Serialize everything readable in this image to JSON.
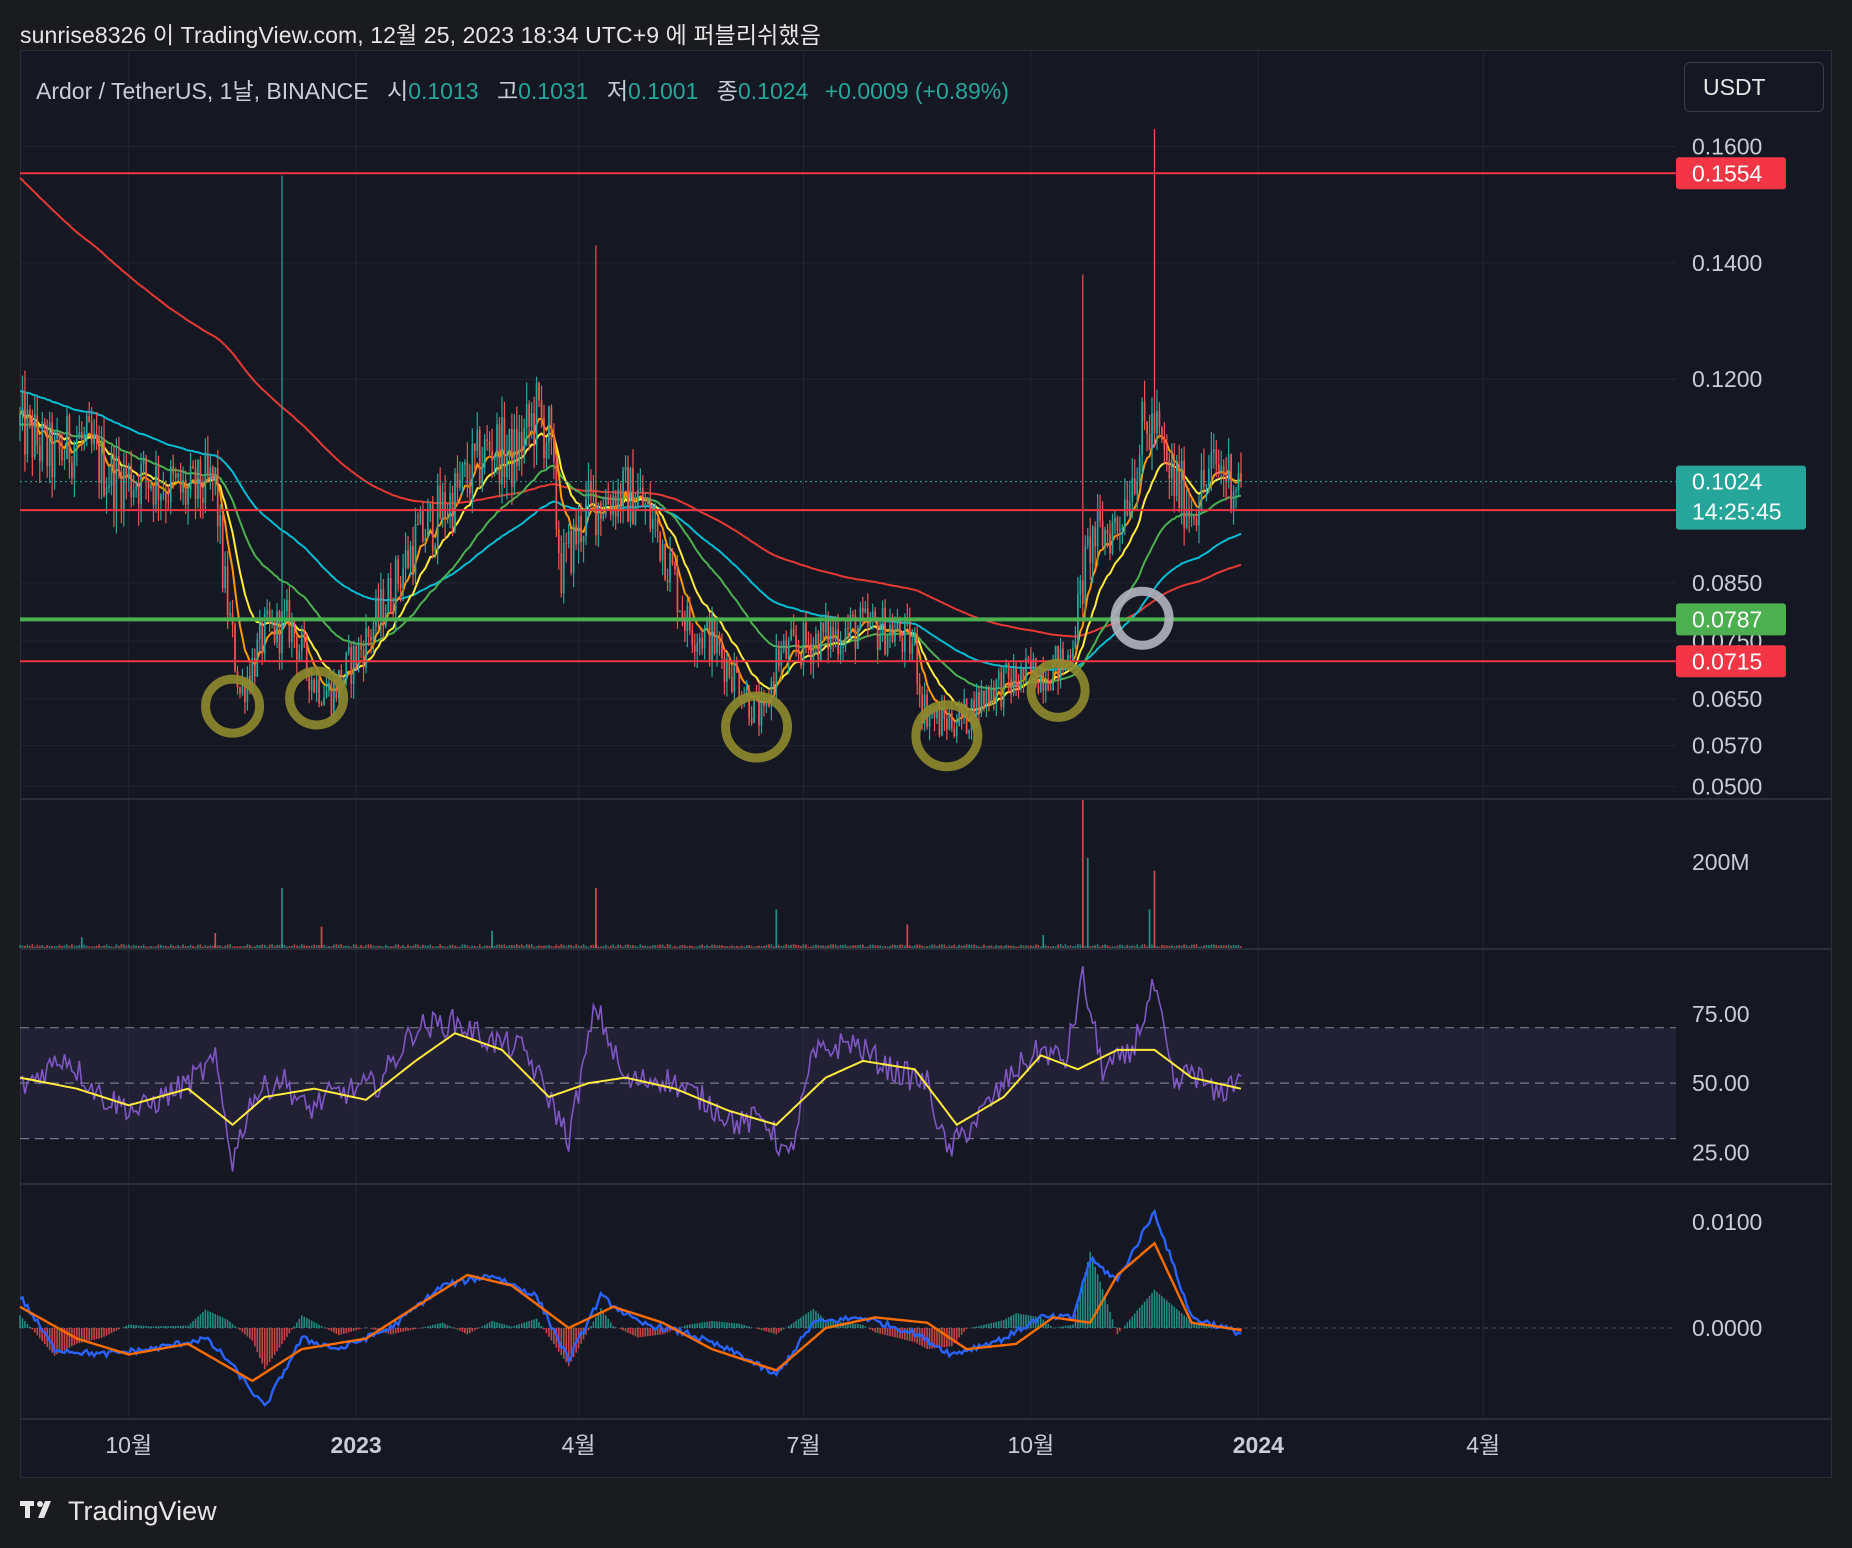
{
  "header": {
    "publish_line": "sunrise8326 이 TradingView.com, 12월 25, 2023 18:34 UTC+9 에 퍼블리쉬했음"
  },
  "legend": {
    "symbol": "Ardor / TetherUS, 1날, BINANCE",
    "open_label": "시",
    "open": "0.1013",
    "high_label": "고",
    "high": "0.1031",
    "low_label": "저",
    "low": "0.1001",
    "close_label": "종",
    "close": "0.1024",
    "change": "+0.0009 (+0.89%)"
  },
  "currency_button": "USDT",
  "footer": {
    "logo_icon": "tradingview-logo-icon",
    "brand": "TradingView"
  },
  "colors": {
    "up": "#26a69a",
    "down": "#ef5350",
    "resistance": "#f23645",
    "support": "#4caf50",
    "ema_fast": "#ff9800",
    "ema_yellow": "#ffeb3b",
    "ema_green": "#4caf50",
    "ema_cyan": "#00bcd4",
    "ema_red": "#e53935",
    "rsi": "#7e57c2",
    "rsi_ma": "#ffeb3b",
    "macd": "#2962ff",
    "signal": "#ff6d00",
    "circle_olive": "#8f8a2c",
    "circle_gray": "#b2b5be"
  },
  "chart_data": [
    {
      "type": "candlestick",
      "title": "Ardor / TetherUS, 1날, BINANCE",
      "ylim": [
        0.048,
        0.168
      ],
      "y_ticks": [
        "0.1600",
        "0.1400",
        "0.1200",
        "0.0850",
        "0.0750",
        "0.0650",
        "0.0570",
        "0.0500"
      ],
      "y_tick_values": [
        0.16,
        0.14,
        0.12,
        0.085,
        0.075,
        0.065,
        0.057,
        0.05
      ],
      "x_ticks": [
        "10월",
        "2023",
        "4월",
        "7월",
        "10월",
        "2024",
        "4월"
      ],
      "x_tick_dates": [
        "2022-10-01",
        "2023-01-01",
        "2023-04-01",
        "2023-07-01",
        "2023-10-01",
        "2024-01-01",
        "2024-04-01"
      ],
      "x_range_dates": [
        "2022-08-18",
        "2024-06-18"
      ],
      "last_date": "2023-12-25",
      "levels": [
        {
          "value": 0.1554,
          "label": "0.1554",
          "color": "#f23645"
        },
        {
          "value": 0.0975,
          "label": "0.0975",
          "color": "#f23645"
        },
        {
          "value": 0.0787,
          "label": "0.0787",
          "color": "#4caf50"
        },
        {
          "value": 0.0715,
          "label": "0.0715",
          "color": "#f23645"
        }
      ],
      "last_price": {
        "value": 0.1024,
        "label": "0.1024",
        "countdown": "14:25:45"
      },
      "price_path": {
        "dates": [
          "2022-08-18",
          "2022-09-01",
          "2022-09-10",
          "2022-09-25",
          "2022-10-10",
          "2022-10-25",
          "2022-11-05",
          "2022-11-08",
          "2022-11-15",
          "2022-11-25",
          "2022-12-05",
          "2022-12-15",
          "2022-12-22",
          "2023-01-05",
          "2023-01-25",
          "2023-02-10",
          "2023-02-25",
          "2023-03-05",
          "2023-03-15",
          "2023-03-20",
          "2023-03-25",
          "2023-04-05",
          "2023-04-15",
          "2023-04-25",
          "2023-05-05",
          "2023-05-15",
          "2023-05-25",
          "2023-06-05",
          "2023-06-10",
          "2023-06-15",
          "2023-06-20",
          "2023-07-05",
          "2023-07-20",
          "2023-08-05",
          "2023-08-15",
          "2023-08-18",
          "2023-08-25",
          "2023-09-05",
          "2023-09-15",
          "2023-09-25",
          "2023-10-05",
          "2023-10-15",
          "2023-10-20",
          "2023-10-25",
          "2023-11-05",
          "2023-11-15",
          "2023-11-20",
          "2023-11-25",
          "2023-12-05",
          "2023-12-15",
          "2023-12-25"
        ],
        "values": [
          0.112,
          0.106,
          0.11,
          0.103,
          0.103,
          0.1,
          0.102,
          0.087,
          0.066,
          0.076,
          0.078,
          0.068,
          0.066,
          0.075,
          0.092,
          0.1,
          0.109,
          0.106,
          0.114,
          0.11,
          0.087,
          0.098,
          0.1,
          0.1,
          0.092,
          0.078,
          0.075,
          0.068,
          0.064,
          0.061,
          0.072,
          0.075,
          0.077,
          0.077,
          0.074,
          0.064,
          0.061,
          0.062,
          0.067,
          0.068,
          0.07,
          0.071,
          0.08,
          0.092,
          0.095,
          0.11,
          0.112,
          0.104,
          0.098,
          0.105,
          0.1024
        ]
      },
      "spike_highs": [
        {
          "date": "2022-12-02",
          "value": 0.155
        },
        {
          "date": "2023-04-08",
          "value": 0.143
        },
        {
          "date": "2023-10-22",
          "value": 0.138
        },
        {
          "date": "2023-11-20",
          "value": 0.163
        }
      ],
      "highlight_circles": [
        {
          "date": "2022-11-12",
          "value": 0.0638,
          "color": "#8f8a2c"
        },
        {
          "date": "2022-12-16",
          "value": 0.0652,
          "color": "#8f8a2c"
        },
        {
          "date": "2023-06-12",
          "value": 0.0602,
          "color": "#8f8a2c"
        },
        {
          "date": "2023-08-28",
          "value": 0.0587,
          "color": "#8f8a2c"
        },
        {
          "date": "2023-10-12",
          "value": 0.0665,
          "color": "#8f8a2c"
        },
        {
          "date": "2023-11-15",
          "value": 0.0789,
          "color": "#b2b5be"
        }
      ]
    },
    {
      "type": "bar",
      "title": "Volume",
      "y_ticks": [
        "200M"
      ],
      "y_tick_values": [
        200
      ],
      "ylim": [
        0,
        345
      ],
      "spikes": [
        {
          "date": "2022-09-12",
          "value": 25
        },
        {
          "date": "2022-11-05",
          "value": 35
        },
        {
          "date": "2022-12-02",
          "value": 140
        },
        {
          "date": "2022-12-18",
          "value": 50
        },
        {
          "date": "2023-02-25",
          "value": 40
        },
        {
          "date": "2023-04-08",
          "value": 140
        },
        {
          "date": "2023-06-20",
          "value": 90
        },
        {
          "date": "2023-08-12",
          "value": 55
        },
        {
          "date": "2023-10-06",
          "value": 30
        },
        {
          "date": "2023-10-22",
          "value": 345
        },
        {
          "date": "2023-10-24",
          "value": 210
        },
        {
          "date": "2023-11-20",
          "value": 180
        },
        {
          "date": "2023-11-18",
          "value": 90
        }
      ]
    },
    {
      "type": "line",
      "title": "RSI",
      "ylim": [
        14,
        98
      ],
      "y_ticks": [
        "75.00",
        "50.00",
        "25.00"
      ],
      "y_tick_values": [
        75,
        50,
        25
      ],
      "bands": [
        70,
        50,
        30
      ],
      "series": [
        {
          "color": "#7e57c2",
          "dates": [
            "2022-08-18",
            "2022-09-05",
            "2022-09-20",
            "2022-10-05",
            "2022-10-25",
            "2022-11-05",
            "2022-11-12",
            "2022-11-20",
            "2022-12-02",
            "2022-12-12",
            "2022-12-20",
            "2023-01-10",
            "2023-01-25",
            "2023-02-10",
            "2023-02-25",
            "2023-03-10",
            "2023-03-20",
            "2023-03-28",
            "2023-04-08",
            "2023-04-20",
            "2023-05-05",
            "2023-05-20",
            "2023-06-05",
            "2023-06-15",
            "2023-06-25",
            "2023-07-05",
            "2023-07-20",
            "2023-08-05",
            "2023-08-20",
            "2023-08-28",
            "2023-09-10",
            "2023-09-25",
            "2023-10-05",
            "2023-10-15",
            "2023-10-22",
            "2023-10-30",
            "2023-11-10",
            "2023-11-20",
            "2023-11-28",
            "2023-12-05",
            "2023-12-15",
            "2023-12-25"
          ],
          "values": [
            48,
            60,
            45,
            40,
            50,
            58,
            22,
            45,
            52,
            40,
            45,
            50,
            70,
            72,
            65,
            62,
            45,
            30,
            78,
            50,
            52,
            45,
            35,
            38,
            22,
            60,
            65,
            55,
            50,
            25,
            38,
            55,
            62,
            58,
            88,
            55,
            60,
            85,
            48,
            55,
            45,
            53
          ]
        },
        {
          "color": "#ffeb3b",
          "dates": [
            "2022-08-18",
            "2022-09-10",
            "2022-10-01",
            "2022-10-25",
            "2022-11-12",
            "2022-11-25",
            "2022-12-15",
            "2023-01-05",
            "2023-01-25",
            "2023-02-10",
            "2023-03-01",
            "2023-03-20",
            "2023-04-05",
            "2023-04-20",
            "2023-05-10",
            "2023-06-01",
            "2023-06-20",
            "2023-07-10",
            "2023-07-25",
            "2023-08-15",
            "2023-09-01",
            "2023-09-20",
            "2023-10-05",
            "2023-10-20",
            "2023-11-05",
            "2023-11-20",
            "2023-12-05",
            "2023-12-25"
          ],
          "values": [
            52,
            48,
            42,
            48,
            35,
            45,
            48,
            44,
            58,
            68,
            62,
            45,
            50,
            52,
            48,
            40,
            35,
            52,
            58,
            55,
            35,
            45,
            60,
            55,
            62,
            62,
            52,
            48
          ]
        }
      ]
    },
    {
      "type": "line",
      "title": "MACD",
      "ylim": [
        -0.0085,
        0.0135
      ],
      "y_ticks": [
        "0.0100",
        "0.0000"
      ],
      "y_tick_values": [
        0.01,
        0
      ],
      "series": [
        {
          "color": "#2962ff",
          "dates": [
            "2022-08-18",
            "2022-09-01",
            "2022-09-20",
            "2022-10-10",
            "2022-11-01",
            "2022-11-10",
            "2022-11-25",
            "2022-12-10",
            "2022-12-25",
            "2023-01-15",
            "2023-02-05",
            "2023-02-25",
            "2023-03-15",
            "2023-03-28",
            "2023-04-10",
            "2023-04-25",
            "2023-05-15",
            "2023-06-05",
            "2023-06-20",
            "2023-07-05",
            "2023-07-25",
            "2023-08-15",
            "2023-08-30",
            "2023-09-20",
            "2023-10-05",
            "2023-10-18",
            "2023-10-25",
            "2023-11-05",
            "2023-11-20",
            "2023-12-05",
            "2023-12-25"
          ],
          "values": [
            0.003,
            -0.002,
            -0.0025,
            -0.002,
            -0.001,
            -0.003,
            -0.0075,
            -0.001,
            -0.002,
            0,
            0.004,
            0.005,
            0.003,
            -0.003,
            0.003,
            0.0005,
            -0.0005,
            -0.0025,
            -0.0045,
            0.0005,
            0.001,
            -0.0005,
            -0.0025,
            -0.001,
            0.001,
            0.001,
            0.0065,
            0.0045,
            0.011,
            0.001,
            -0.0005
          ]
        },
        {
          "color": "#ff6d00",
          "dates": [
            "2022-08-18",
            "2022-09-10",
            "2022-10-01",
            "2022-10-25",
            "2022-11-20",
            "2022-12-10",
            "2023-01-05",
            "2023-01-25",
            "2023-02-15",
            "2023-03-05",
            "2023-03-28",
            "2023-04-15",
            "2023-05-05",
            "2023-05-25",
            "2023-06-20",
            "2023-07-10",
            "2023-07-30",
            "2023-08-20",
            "2023-09-05",
            "2023-09-25",
            "2023-10-10",
            "2023-10-25",
            "2023-11-05",
            "2023-11-20",
            "2023-12-05",
            "2023-12-25"
          ],
          "values": [
            0.002,
            -0.001,
            -0.0025,
            -0.0015,
            -0.005,
            -0.002,
            -0.001,
            0.002,
            0.005,
            0.004,
            0,
            0.002,
            0.0005,
            -0.002,
            -0.004,
            0,
            0.001,
            0.0005,
            -0.002,
            -0.0015,
            0.001,
            0.0005,
            0.005,
            0.008,
            0.0005,
            -0.0002
          ]
        }
      ]
    }
  ]
}
